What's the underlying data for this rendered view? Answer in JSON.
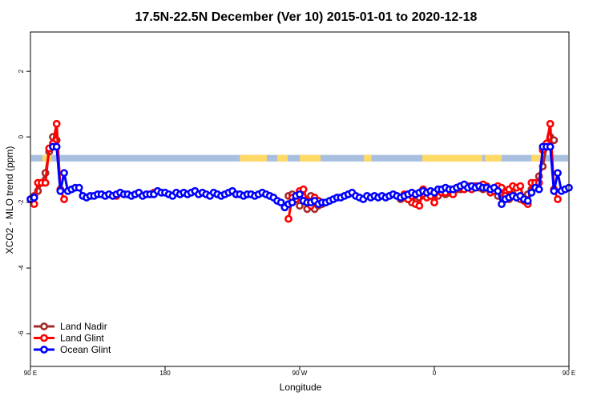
{
  "chart_data": {
    "type": "line",
    "title": "17.5N-22.5N December (Ver 10)   2015-01-01 to 2020-12-18",
    "xlabel": "Longitude",
    "ylabel": "XCO2 - MLO trend (ppm)",
    "xlim": [
      90,
      450
    ],
    "ylim": [
      -7,
      3.2
    ],
    "x_ticks": [
      {
        "value": 90,
        "label": "90 E"
      },
      {
        "value": 180,
        "label": "180"
      },
      {
        "value": 270,
        "label": "90 W"
      },
      {
        "value": 360,
        "label": "0"
      },
      {
        "value": 450,
        "label": "90 E"
      },
      {
        "value": 540,
        "label": "180"
      }
    ],
    "y_ticks": [
      {
        "value": 2,
        "label": "2"
      },
      {
        "value": 0,
        "label": "0"
      },
      {
        "value": -2,
        "label": "-2"
      },
      {
        "value": -4,
        "label": "-4"
      },
      {
        "value": -6,
        "label": "-6"
      }
    ],
    "land_mask_band": {
      "y_range": [
        -0.75,
        -0.55
      ],
      "land_color": "#ffd966",
      "ocean_color": "#a8bfe0",
      "land_x_ranges": [
        [
          98,
          104
        ],
        [
          230,
          248
        ],
        [
          255,
          262
        ],
        [
          270,
          284
        ],
        [
          313,
          318
        ],
        [
          352,
          392
        ],
        [
          394,
          405
        ],
        [
          425,
          432
        ],
        [
          452,
          458
        ],
        [
          460,
          468
        ],
        [
          478,
          484
        ],
        [
          490,
          498
        ]
      ]
    },
    "legend_position": "bottom-left",
    "series": [
      {
        "name": "Land Nadir",
        "color": "#a52a2a",
        "points": [
          [
            92.5,
            -1.8
          ],
          [
            95,
            -1.65
          ],
          [
            97.5,
            -1.4
          ],
          [
            100,
            -1.1
          ],
          [
            102.5,
            -0.45
          ],
          [
            105,
            0.0
          ],
          [
            107.5,
            -0.1
          ],
          [
            262.5,
            -1.8
          ],
          [
            265,
            -1.75
          ],
          [
            267.5,
            -1.9
          ],
          [
            270,
            -2.1
          ],
          [
            272.5,
            -1.95
          ],
          [
            275,
            -2.2
          ],
          [
            277.5,
            -1.8
          ],
          [
            280,
            -2.2
          ],
          [
            282.5,
            -2.1
          ],
          [
            285,
            -2.05
          ],
          [
            337.5,
            -1.9
          ],
          [
            340,
            -1.85
          ],
          [
            342.5,
            -1.9
          ],
          [
            345,
            -2.0
          ],
          [
            347.5,
            -1.8
          ],
          [
            350,
            -1.85
          ],
          [
            352.5,
            -1.75
          ],
          [
            357.5,
            -1.75
          ],
          [
            360,
            -1.75
          ],
          [
            362.5,
            -1.8
          ],
          [
            365,
            -1.7
          ],
          [
            367.5,
            -1.75
          ],
          [
            370,
            -1.7
          ],
          [
            372.5,
            -1.65
          ],
          [
            375,
            -1.6
          ],
          [
            377.5,
            -1.6
          ],
          [
            380,
            -1.55
          ],
          [
            382.5,
            -1.5
          ],
          [
            385,
            -1.55
          ],
          [
            387.5,
            -1.55
          ],
          [
            390,
            -1.55
          ],
          [
            392.5,
            -1.6
          ],
          [
            395,
            -1.5
          ],
          [
            397.5,
            -1.65
          ],
          [
            400,
            -1.6
          ],
          [
            402.5,
            -1.8
          ],
          [
            405,
            -1.6
          ],
          [
            407.5,
            -1.7
          ],
          [
            410,
            -1.9
          ],
          [
            412.5,
            -1.75
          ],
          [
            415,
            -1.85
          ],
          [
            417.5,
            -1.9
          ],
          [
            420,
            -1.85
          ],
          [
            422.5,
            -1.75
          ],
          [
            425,
            -1.6
          ],
          [
            427.5,
            -1.45
          ],
          [
            430,
            -1.2
          ],
          [
            432.5,
            -0.9
          ],
          [
            435,
            -0.3
          ],
          [
            437.5,
            0.0
          ],
          [
            440,
            -0.1
          ]
        ]
      },
      {
        "name": "Land Glint",
        "color": "#ff0000",
        "points": [
          [
            92.5,
            -2.05
          ],
          [
            95,
            -1.4
          ],
          [
            97.5,
            -1.4
          ],
          [
            100,
            -1.4
          ],
          [
            102.5,
            -0.35
          ],
          [
            105,
            -0.2
          ],
          [
            107.5,
            0.4
          ],
          [
            110,
            -1.6
          ],
          [
            112.5,
            -1.9
          ],
          [
            147.5,
            -1.8
          ],
          [
            172.5,
            -1.7
          ],
          [
            262.5,
            -2.5
          ],
          [
            265,
            -1.85
          ],
          [
            267.5,
            -1.9
          ],
          [
            270,
            -1.65
          ],
          [
            272.5,
            -1.6
          ],
          [
            275,
            -1.95
          ],
          [
            277.5,
            -2.1
          ],
          [
            280,
            -1.85
          ],
          [
            282.5,
            -1.95
          ],
          [
            285,
            -2.0
          ],
          [
            337.5,
            -1.85
          ],
          [
            340,
            -1.75
          ],
          [
            342.5,
            -1.9
          ],
          [
            345,
            -1.8
          ],
          [
            347.5,
            -2.05
          ],
          [
            350,
            -2.1
          ],
          [
            352.5,
            -1.6
          ],
          [
            355,
            -1.85
          ],
          [
            357.5,
            -1.8
          ],
          [
            360,
            -2.0
          ],
          [
            362.5,
            -1.65
          ],
          [
            365,
            -1.7
          ],
          [
            367.5,
            -1.7
          ],
          [
            370,
            -1.6
          ],
          [
            372.5,
            -1.75
          ],
          [
            375,
            -1.55
          ],
          [
            377.5,
            -1.55
          ],
          [
            380,
            -1.6
          ],
          [
            382.5,
            -1.55
          ],
          [
            385,
            -1.6
          ],
          [
            387.5,
            -1.5
          ],
          [
            390,
            -1.5
          ],
          [
            392.5,
            -1.45
          ],
          [
            395,
            -1.55
          ],
          [
            397.5,
            -1.7
          ],
          [
            400,
            -1.65
          ],
          [
            402.5,
            -1.5
          ],
          [
            405,
            -1.55
          ],
          [
            407.5,
            -1.8
          ],
          [
            410,
            -1.6
          ],
          [
            412.5,
            -1.5
          ],
          [
            415,
            -1.55
          ],
          [
            417.5,
            -1.5
          ],
          [
            420,
            -1.95
          ],
          [
            422.5,
            -2.05
          ],
          [
            425,
            -1.4
          ],
          [
            427.5,
            -1.4
          ],
          [
            430,
            -1.4
          ],
          [
            432.5,
            -0.4
          ],
          [
            435,
            -0.2
          ],
          [
            437.5,
            0.4
          ],
          [
            440,
            -1.6
          ],
          [
            442.5,
            -1.9
          ]
        ]
      },
      {
        "name": "Ocean Glint",
        "color": "#0000ff",
        "points": [
          [
            90,
            -1.9
          ],
          [
            92.5,
            -1.85
          ],
          [
            105,
            -0.3
          ],
          [
            107.5,
            -0.3
          ],
          [
            110,
            -1.65
          ],
          [
            112.5,
            -1.1
          ],
          [
            115,
            -1.65
          ],
          [
            117.5,
            -1.6
          ],
          [
            120,
            -1.55
          ],
          [
            122.5,
            -1.55
          ],
          [
            125,
            -1.8
          ],
          [
            127.5,
            -1.85
          ],
          [
            130,
            -1.8
          ],
          [
            132.5,
            -1.8
          ],
          [
            135,
            -1.75
          ],
          [
            137.5,
            -1.75
          ],
          [
            140,
            -1.8
          ],
          [
            142.5,
            -1.75
          ],
          [
            145,
            -1.8
          ],
          [
            147.5,
            -1.75
          ],
          [
            150,
            -1.7
          ],
          [
            152.5,
            -1.75
          ],
          [
            155,
            -1.75
          ],
          [
            157.5,
            -1.8
          ],
          [
            160,
            -1.75
          ],
          [
            162.5,
            -1.7
          ],
          [
            165,
            -1.8
          ],
          [
            167.5,
            -1.75
          ],
          [
            170,
            -1.75
          ],
          [
            172.5,
            -1.75
          ],
          [
            175,
            -1.65
          ],
          [
            177.5,
            -1.7
          ],
          [
            180,
            -1.7
          ],
          [
            182.5,
            -1.75
          ],
          [
            185,
            -1.8
          ],
          [
            187.5,
            -1.7
          ],
          [
            190,
            -1.75
          ],
          [
            192.5,
            -1.7
          ],
          [
            195,
            -1.75
          ],
          [
            197.5,
            -1.7
          ],
          [
            200,
            -1.65
          ],
          [
            202.5,
            -1.75
          ],
          [
            205,
            -1.7
          ],
          [
            207.5,
            -1.75
          ],
          [
            210,
            -1.8
          ],
          [
            212.5,
            -1.7
          ],
          [
            215,
            -1.75
          ],
          [
            217.5,
            -1.8
          ],
          [
            220,
            -1.75
          ],
          [
            222.5,
            -1.7
          ],
          [
            225,
            -1.65
          ],
          [
            227.5,
            -1.75
          ],
          [
            230,
            -1.75
          ],
          [
            232.5,
            -1.8
          ],
          [
            235,
            -1.75
          ],
          [
            237.5,
            -1.75
          ],
          [
            240,
            -1.8
          ],
          [
            242.5,
            -1.75
          ],
          [
            245,
            -1.7
          ],
          [
            247.5,
            -1.75
          ],
          [
            250,
            -1.8
          ],
          [
            252.5,
            -1.85
          ],
          [
            255,
            -1.95
          ],
          [
            257.5,
            -2.0
          ],
          [
            260,
            -2.15
          ],
          [
            262.5,
            -2.05
          ],
          [
            265,
            -2.0
          ],
          [
            267.5,
            -1.8
          ],
          [
            270,
            -1.75
          ],
          [
            272.5,
            -1.95
          ],
          [
            275,
            -2.0
          ],
          [
            277.5,
            -2.0
          ],
          [
            280,
            -1.95
          ],
          [
            282.5,
            -2.05
          ],
          [
            285,
            -2.0
          ],
          [
            287.5,
            -2.0
          ],
          [
            290,
            -1.95
          ],
          [
            292.5,
            -1.9
          ],
          [
            295,
            -1.85
          ],
          [
            297.5,
            -1.85
          ],
          [
            300,
            -1.8
          ],
          [
            302.5,
            -1.75
          ],
          [
            305,
            -1.7
          ],
          [
            307.5,
            -1.8
          ],
          [
            310,
            -1.85
          ],
          [
            312.5,
            -1.9
          ],
          [
            315,
            -1.8
          ],
          [
            317.5,
            -1.85
          ],
          [
            320,
            -1.8
          ],
          [
            322.5,
            -1.85
          ],
          [
            325,
            -1.8
          ],
          [
            327.5,
            -1.85
          ],
          [
            330,
            -1.8
          ],
          [
            332.5,
            -1.75
          ],
          [
            335,
            -1.8
          ],
          [
            337.5,
            -1.85
          ],
          [
            340,
            -1.8
          ],
          [
            342.5,
            -1.75
          ],
          [
            345,
            -1.7
          ],
          [
            347.5,
            -1.75
          ],
          [
            350,
            -1.7
          ],
          [
            352.5,
            -1.65
          ],
          [
            355,
            -1.7
          ],
          [
            357.5,
            -1.65
          ],
          [
            360,
            -1.7
          ],
          [
            362.5,
            -1.6
          ],
          [
            365,
            -1.6
          ],
          [
            367.5,
            -1.55
          ],
          [
            370,
            -1.6
          ],
          [
            372.5,
            -1.6
          ],
          [
            375,
            -1.55
          ],
          [
            377.5,
            -1.5
          ],
          [
            380,
            -1.45
          ],
          [
            382.5,
            -1.55
          ],
          [
            385,
            -1.5
          ],
          [
            387.5,
            -1.55
          ],
          [
            390,
            -1.5
          ],
          [
            392.5,
            -1.55
          ],
          [
            395,
            -1.55
          ],
          [
            397.5,
            -1.6
          ],
          [
            400,
            -1.55
          ],
          [
            402.5,
            -1.65
          ],
          [
            405,
            -2.05
          ],
          [
            407.5,
            -1.9
          ],
          [
            410,
            -1.85
          ],
          [
            412.5,
            -1.8
          ],
          [
            415,
            -1.85
          ],
          [
            417.5,
            -1.8
          ],
          [
            420,
            -1.9
          ],
          [
            422.5,
            -1.95
          ],
          [
            425,
            -1.7
          ],
          [
            427.5,
            -1.55
          ],
          [
            430,
            -1.6
          ],
          [
            432.5,
            -0.3
          ],
          [
            435,
            -0.3
          ],
          [
            437.5,
            -0.3
          ],
          [
            440,
            -1.65
          ],
          [
            442.5,
            -1.1
          ],
          [
            445,
            -1.65
          ],
          [
            447.5,
            -1.6
          ],
          [
            450,
            -1.55
          ]
        ]
      }
    ]
  }
}
